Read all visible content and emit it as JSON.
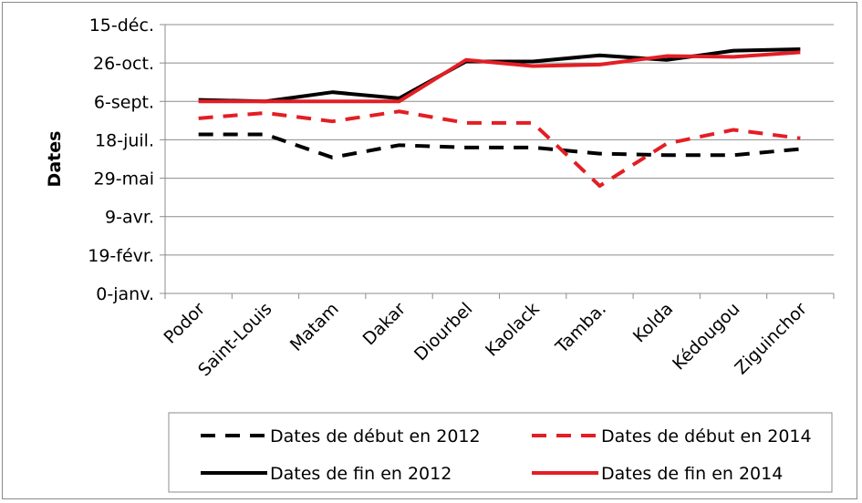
{
  "chart_data": {
    "type": "line",
    "title": "",
    "xlabel": "",
    "ylabel": "Dates",
    "categories": [
      "Podor",
      "Saint-Louis",
      "Matam",
      "Dakar",
      "Diourbel",
      "Kaolack",
      "Tamba.",
      "Kolda",
      "Kédougou",
      "Ziguinchor"
    ],
    "y_ticks": [
      {
        "value": 0,
        "label": "0-janv."
      },
      {
        "value": 50,
        "label": "19-févr."
      },
      {
        "value": 100,
        "label": "9-avr."
      },
      {
        "value": 150,
        "label": "29-mai"
      },
      {
        "value": 200,
        "label": "18-juil."
      },
      {
        "value": 250,
        "label": "6-sept."
      },
      {
        "value": 300,
        "label": "26-oct."
      },
      {
        "value": 350,
        "label": "15-déc."
      }
    ],
    "ylim": [
      0,
      350
    ],
    "grid": true,
    "legend_position": "bottom",
    "series": [
      {
        "name": "Dates de début en 2012",
        "color": "#000000",
        "dashed": true,
        "values": [
          207,
          207,
          177,
          193,
          190,
          190,
          182,
          180,
          180,
          188
        ]
      },
      {
        "name": "Dates de début en 2014",
        "color": "#e31e24",
        "dashed": true,
        "values": [
          228,
          235,
          224,
          237,
          222,
          222,
          140,
          195,
          213,
          202
        ]
      },
      {
        "name": "Dates de fin en 2012",
        "color": "#000000",
        "dashed": false,
        "values": [
          252,
          250,
          262,
          254,
          302,
          302,
          310,
          304,
          316,
          318
        ]
      },
      {
        "name": "Dates de fin en 2014",
        "color": "#e31e24",
        "dashed": false,
        "values": [
          250,
          250,
          250,
          250,
          304,
          296,
          298,
          309,
          308,
          314
        ]
      }
    ]
  }
}
